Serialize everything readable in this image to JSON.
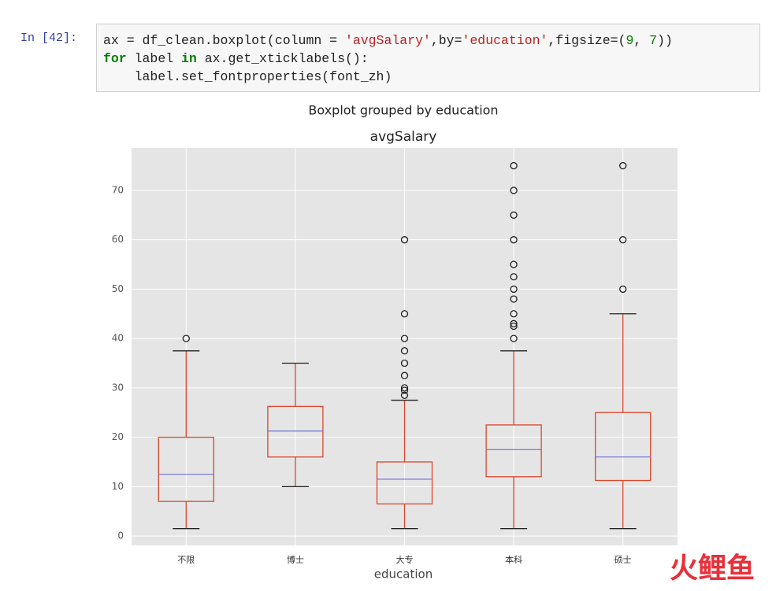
{
  "prompt": "In [42]:",
  "code": {
    "lines": [
      [
        {
          "text": "ax = df_clean.boxplot(column = ",
          "color": "#222222"
        },
        {
          "text": "'avgSalary'",
          "color": "#ba2121"
        },
        {
          "text": ",by=",
          "color": "#222222"
        },
        {
          "text": "'education'",
          "color": "#ba2121"
        },
        {
          "text": ",figsize=(",
          "color": "#222222"
        },
        {
          "text": "9",
          "color": "#008000"
        },
        {
          "text": ", ",
          "color": "#222222"
        },
        {
          "text": "7",
          "color": "#008000"
        },
        {
          "text": "))",
          "color": "#222222"
        }
      ],
      [
        {
          "text": "for",
          "color": "#008000",
          "weight": "bold"
        },
        {
          "text": " label ",
          "color": "#222222"
        },
        {
          "text": "in",
          "color": "#008000",
          "weight": "bold"
        },
        {
          "text": " ax.get_xticklabels():",
          "color": "#222222"
        }
      ],
      [
        {
          "text": "    label.set_fontproperties(font_zh)",
          "color": "#222222"
        }
      ]
    ]
  },
  "chart_data": {
    "type": "box",
    "suptitle": "Boxplot grouped by education",
    "title": "avgSalary",
    "x_label": "education",
    "categories": [
      "不限",
      "博士",
      "大专",
      "本科",
      "硕士"
    ],
    "boxes": [
      {
        "whislo": 1.5,
        "q1": 7,
        "med": 12.5,
        "q3": 20,
        "whishi": 37.5,
        "fliers": [
          40
        ]
      },
      {
        "whislo": 10,
        "q1": 16,
        "med": 21.25,
        "q3": 26.25,
        "whishi": 35,
        "fliers": []
      },
      {
        "whislo": 1.5,
        "q1": 6.5,
        "med": 11.5,
        "q3": 15,
        "whishi": 27.5,
        "fliers": [
          28.5,
          29.5,
          30,
          32.5,
          35,
          37.5,
          40,
          45,
          60
        ]
      },
      {
        "whislo": 1.5,
        "q1": 12,
        "med": 17.5,
        "q3": 22.5,
        "whishi": 37.5,
        "fliers": [
          40,
          42.5,
          43,
          45,
          48,
          50,
          52.5,
          55,
          60,
          65,
          70,
          75
        ]
      },
      {
        "whislo": 1.5,
        "q1": 11.25,
        "med": 16,
        "q3": 25,
        "whishi": 45,
        "fliers": [
          50,
          60,
          75
        ]
      }
    ],
    "ylim": [
      -1.9,
      78.6
    ],
    "yticks": [
      0,
      10,
      20,
      30,
      40,
      50,
      60,
      70
    ],
    "grid": true,
    "box_color": "#d9472b",
    "median_color": "#7070d8",
    "background": "#e5e5e5"
  },
  "watermark": "火鲤鱼"
}
